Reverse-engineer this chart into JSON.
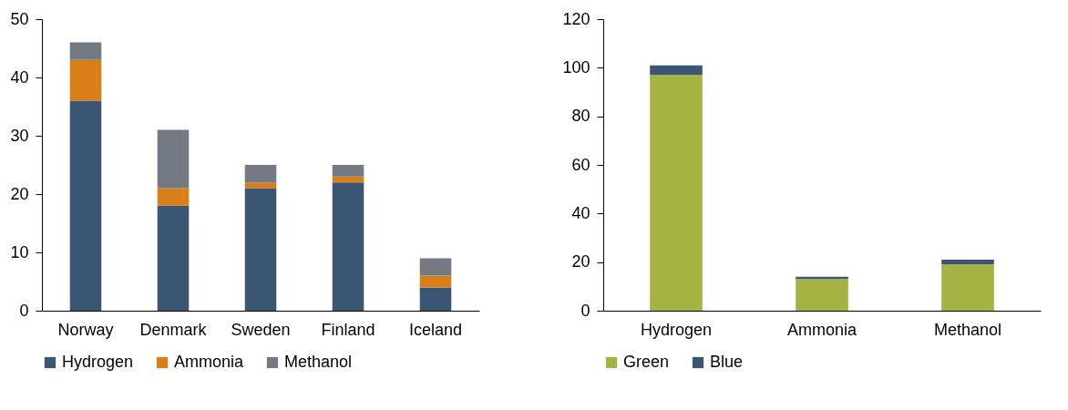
{
  "chart_data": [
    {
      "type": "bar",
      "stacked": true,
      "categories": [
        "Norway",
        "Denmark",
        "Sweden",
        "Finland",
        "Iceland"
      ],
      "ylim": [
        0,
        50
      ],
      "yticks": [
        0,
        10,
        20,
        30,
        40,
        50
      ],
      "grid": false,
      "legend": "bottom",
      "series": [
        {
          "name": "Hydrogen",
          "color": "#3b5673",
          "values": [
            36,
            18,
            21,
            22,
            4
          ]
        },
        {
          "name": "Ammonia",
          "color": "#d87f1a",
          "values": [
            7,
            3,
            1,
            1,
            2
          ]
        },
        {
          "name": "Methanol",
          "color": "#737a83",
          "values": [
            3,
            10,
            3,
            2,
            3
          ]
        }
      ]
    },
    {
      "type": "bar",
      "stacked": true,
      "categories": [
        "Hydrogen",
        "Ammonia",
        "Methanol"
      ],
      "ylim": [
        0,
        120
      ],
      "yticks": [
        0,
        20,
        40,
        60,
        80,
        100,
        120
      ],
      "grid": false,
      "legend": "bottom",
      "series": [
        {
          "name": "Green",
          "color": "#a6b242",
          "values": [
            97,
            13,
            19
          ]
        },
        {
          "name": "Blue",
          "color": "#3b5673",
          "values": [
            4,
            1,
            2
          ]
        }
      ]
    }
  ]
}
